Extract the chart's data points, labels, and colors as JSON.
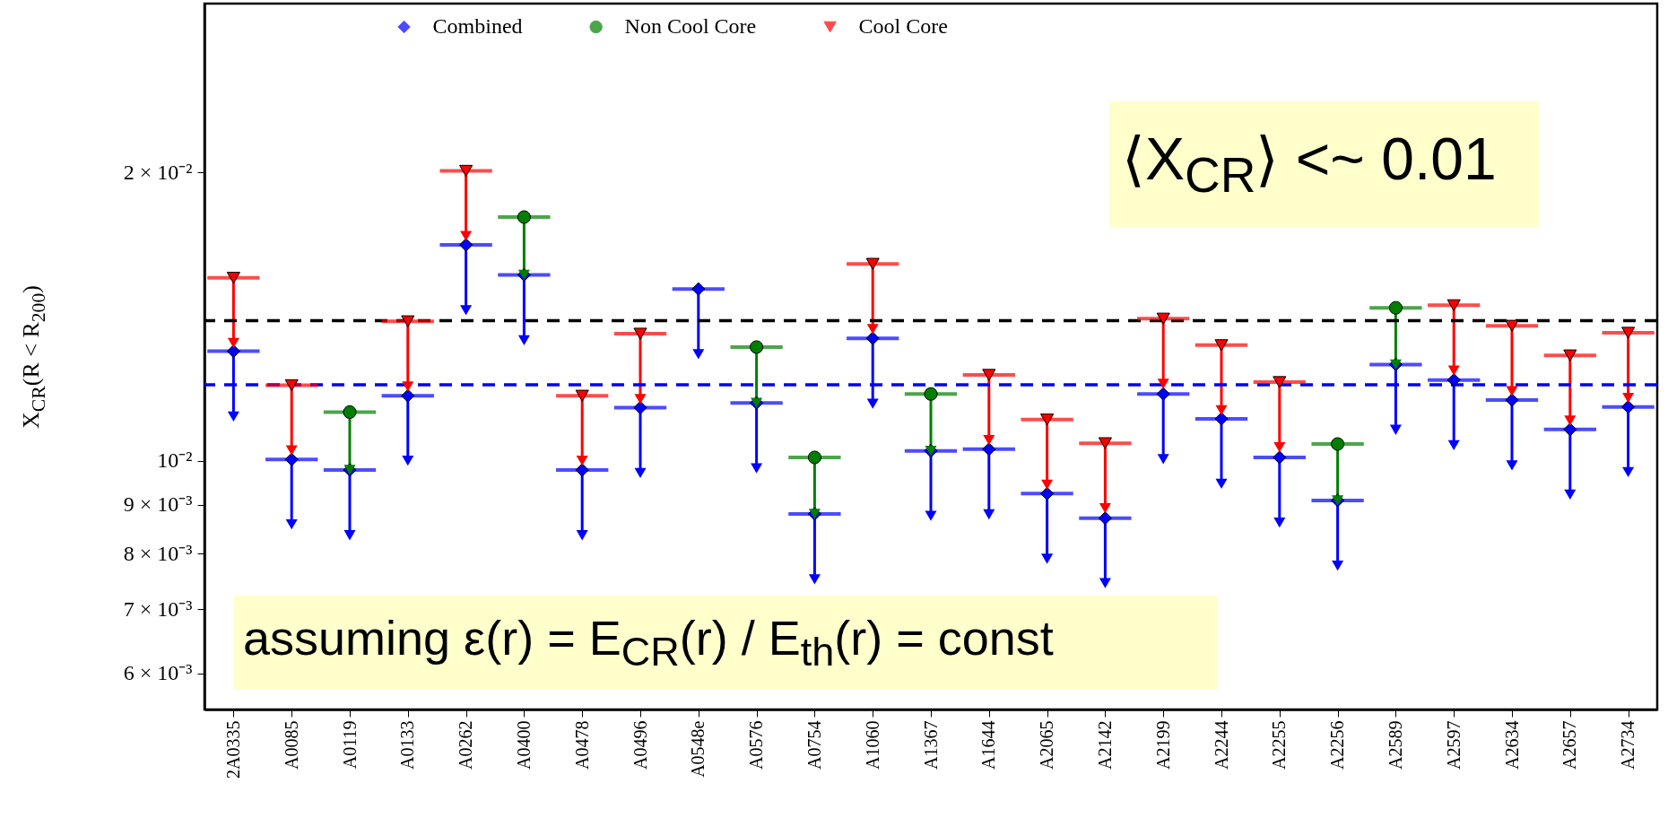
{
  "chart_data": {
    "type": "scatter",
    "categories": [
      "2A0335",
      "A0085",
      "A0119",
      "A0133",
      "A0262",
      "A0400",
      "A0478",
      "A0496",
      "A0548e",
      "A0576",
      "A0754",
      "A1060",
      "A1367",
      "A1644",
      "A2065",
      "A2142",
      "A2199",
      "A2244",
      "A2255",
      "A2256",
      "A2589",
      "A2597",
      "A2634",
      "A2657",
      "A2734"
    ],
    "series": [
      {
        "name": "Combined",
        "color": "#0000ff",
        "marker": "diamond",
        "values": [
          0.01301,
          0.01003,
          0.00978,
          0.01169,
          0.0168,
          0.01563,
          0.00978,
          0.01136,
          0.01511,
          0.01149,
          0.0088,
          0.01342,
          0.01024,
          0.01028,
          0.00924,
          0.00871,
          0.01174,
          0.01106,
          0.01008,
          0.00909,
          0.0126,
          0.01214,
          0.01157,
          0.01078,
          0.01138
        ],
        "errors": [
          [
            0.01112,
            0.01301
          ],
          [
            0.00858,
            0.01003
          ],
          [
            0.00836,
            0.00978
          ],
          [
            0.01,
            0.01169
          ],
          [
            0.01436,
            0.0168
          ],
          [
            0.01336,
            0.01563
          ],
          [
            0.00836,
            0.00978
          ],
          [
            0.00971,
            0.01136
          ],
          [
            0.01292,
            0.01511
          ],
          [
            0.00982,
            0.01149
          ],
          [
            0.00752,
            0.0088
          ],
          [
            0.01147,
            0.01342
          ],
          [
            0.00876,
            0.01024
          ],
          [
            0.00879,
            0.01028
          ],
          [
            0.0079,
            0.00924
          ],
          [
            0.00745,
            0.00871
          ],
          [
            0.01004,
            0.01174
          ],
          [
            0.00946,
            0.01106
          ],
          [
            0.00862,
            0.01008
          ],
          [
            0.00777,
            0.00909
          ],
          [
            0.01077,
            0.0126
          ],
          [
            0.01038,
            0.01214
          ],
          [
            0.00989,
            0.01157
          ],
          [
            0.00922,
            0.01078
          ],
          [
            0.00973,
            0.01138
          ]
        ]
      },
      {
        "name": "Non Cool Core",
        "color": "#007f00",
        "marker": "circle",
        "values": [
          null,
          null,
          0.01124,
          null,
          null,
          0.01796,
          null,
          null,
          null,
          0.01314,
          0.01008,
          null,
          0.01174,
          null,
          null,
          null,
          null,
          null,
          null,
          0.01041,
          0.01444,
          null,
          null,
          null,
          null
        ],
        "errors": [
          null,
          null,
          [
            0.00978,
            0.01124
          ],
          null,
          null,
          [
            0.01563,
            0.01796
          ],
          null,
          null,
          null,
          [
            0.01149,
            0.01314
          ],
          [
            0.0088,
            0.01008
          ],
          null,
          [
            0.01024,
            0.01174
          ],
          null,
          null,
          null,
          null,
          null,
          null,
          [
            0.00909,
            0.01041
          ],
          [
            0.0126,
            0.01444
          ],
          null,
          null,
          null,
          null
        ]
      },
      {
        "name": "Cool Core",
        "color": "#ff0000",
        "marker": "triangle-down",
        "values": [
          0.01552,
          0.01199,
          null,
          0.01398,
          0.02007,
          null,
          0.01169,
          0.01357,
          null,
          null,
          null,
          0.01605,
          null,
          0.01229,
          0.01104,
          0.01043,
          0.01407,
          0.0132,
          0.01208,
          null,
          null,
          0.01453,
          0.01383,
          0.01288,
          0.0136
        ],
        "errors": [
          [
            0.01327,
            0.01552
          ],
          [
            0.01025,
            0.01199
          ],
          null,
          [
            0.01195,
            0.01398
          ],
          [
            0.01716,
            0.02007
          ],
          null,
          [
            0.01,
            0.01169
          ],
          [
            0.0116,
            0.01357
          ],
          null,
          null,
          null,
          [
            0.01372,
            0.01605
          ],
          null,
          [
            0.01051,
            0.01229
          ],
          [
            0.00944,
            0.01104
          ],
          [
            0.00892,
            0.01043
          ],
          [
            0.01203,
            0.01407
          ],
          [
            0.01129,
            0.0132
          ],
          [
            0.01033,
            0.01208
          ],
          null,
          null,
          [
            0.01242,
            0.01453
          ],
          [
            0.01182,
            0.01383
          ],
          [
            0.01101,
            0.01288
          ],
          [
            0.01163,
            0.0136
          ]
        ]
      }
    ],
    "ylabel": "X$_{CR}$(R < R$_{200}$)",
    "ylim": [
      0.0055,
      0.03
    ],
    "yticks": [
      {
        "value": 0.006,
        "label": "6 × 10⁻³"
      },
      {
        "value": 0.007,
        "label": "7 × 10⁻³"
      },
      {
        "value": 0.008,
        "label": "8 × 10⁻³"
      },
      {
        "value": 0.009,
        "label": "9 × 10⁻³"
      },
      {
        "value": 0.01,
        "label": "10⁻²"
      },
      {
        "value": 0.02,
        "label": "2 × 10⁻²"
      }
    ],
    "log": true,
    "grid": false,
    "legend": "top",
    "ref_lines": [
      {
        "axis": "y",
        "value": 0.014,
        "color": "#000000",
        "line_style": "dashed"
      },
      {
        "axis": "y",
        "value": 0.012,
        "color": "#0000ff",
        "line_style": "dashed"
      }
    ],
    "annotations": [
      "⟨X$_{CR}$⟩ <~ 0.01",
      "assuming ε(r) = E$_{CR}$(r) / E$_{th}$(r) = const"
    ]
  }
}
